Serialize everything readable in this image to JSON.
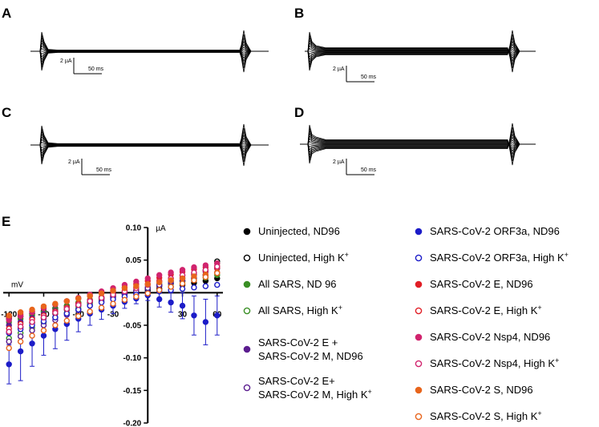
{
  "figure": {
    "panels": [
      {
        "letter": "A",
        "amp_label": "2 µA",
        "time_label": "50 ms",
        "spread": 0.18
      },
      {
        "letter": "B",
        "amp_label": "2 µA",
        "time_label": "50 ms",
        "spread": 0.55
      },
      {
        "letter": "C",
        "amp_label": "2 µA",
        "time_label": "50 ms",
        "spread": 0.22
      },
      {
        "letter": "D",
        "amp_label": "2 µA",
        "time_label": "50 ms",
        "spread": 0.7
      }
    ]
  },
  "chart_data": {
    "panel_label": "E",
    "type": "scatter",
    "xlabel": "mV",
    "ylabel": "µA",
    "xlim": [
      -125,
      65
    ],
    "ylim": [
      -0.2,
      0.1
    ],
    "x_ticks": [
      -120,
      -90,
      -60,
      -30,
      0,
      30,
      60
    ],
    "x_tick_labels": [
      "-120",
      "-90",
      "-60",
      "-30",
      "",
      "30",
      "60"
    ],
    "y_ticks": [
      0.1,
      0.05,
      0,
      -0.05,
      -0.1,
      -0.15,
      -0.2
    ],
    "y_tick_labels": [
      "0.10",
      "0.05",
      "",
      "-0.05",
      "-0.10",
      "-0.15",
      "-0.20"
    ],
    "x": [
      -120,
      -110,
      -100,
      -90,
      -80,
      -70,
      -60,
      -50,
      -40,
      -30,
      -20,
      -10,
      0,
      10,
      20,
      30,
      40,
      50,
      60
    ],
    "series": [
      {
        "name": "Uninjected, ND96",
        "sup": "",
        "marker": "filled",
        "color": "#000000",
        "values": [
          -0.04,
          -0.036,
          -0.032,
          -0.028,
          -0.024,
          -0.02,
          -0.016,
          -0.012,
          -0.008,
          -0.005,
          -0.002,
          0.0,
          0.003,
          0.006,
          0.009,
          0.012,
          0.015,
          0.018,
          0.022
        ]
      },
      {
        "name": "Uninjected, High K",
        "sup": "+",
        "marker": "open",
        "color": "#000000",
        "values": [
          -0.06,
          -0.053,
          -0.046,
          -0.039,
          -0.032,
          -0.026,
          -0.02,
          -0.015,
          -0.01,
          -0.006,
          -0.002,
          0.002,
          0.006,
          0.01,
          0.014,
          0.018,
          0.022,
          0.027,
          0.048
        ]
      },
      {
        "name": "All SARS, ND 96",
        "sup": "",
        "marker": "filled",
        "color": "#3a8f25",
        "values": [
          -0.045,
          -0.04,
          -0.035,
          -0.03,
          -0.025,
          -0.02,
          -0.015,
          -0.011,
          -0.007,
          -0.003,
          0.001,
          0.004,
          0.008,
          0.011,
          0.014,
          0.017,
          0.02,
          0.023,
          0.027
        ]
      },
      {
        "name": "All SARS, High K",
        "sup": "+",
        "marker": "open",
        "color": "#3a8f25",
        "values": [
          -0.07,
          -0.062,
          -0.054,
          -0.046,
          -0.038,
          -0.031,
          -0.024,
          -0.018,
          -0.012,
          -0.007,
          -0.002,
          0.003,
          0.008,
          0.013,
          0.018,
          0.023,
          0.028,
          0.034,
          0.045
        ]
      },
      {
        "name": "SARS-CoV-2 E +\nSARS-CoV-2 M, ND96",
        "sup": "",
        "marker": "filled",
        "color": "#5b1d8f",
        "values": [
          -0.05,
          -0.045,
          -0.039,
          -0.033,
          -0.028,
          -0.023,
          -0.018,
          -0.013,
          -0.009,
          -0.005,
          -0.001,
          0.003,
          0.007,
          0.011,
          0.015,
          0.019,
          0.023,
          0.027,
          0.031
        ]
      },
      {
        "name": "SARS-CoV-2 E+\nSARS-CoV-2 M, High K",
        "sup": "+",
        "marker": "open",
        "color": "#5b1d8f",
        "values": [
          -0.075,
          -0.067,
          -0.058,
          -0.05,
          -0.042,
          -0.034,
          -0.027,
          -0.02,
          -0.014,
          -0.008,
          -0.003,
          0.002,
          0.007,
          0.012,
          0.017,
          0.022,
          0.027,
          0.032,
          0.037
        ]
      },
      {
        "name": "SARS-CoV-2 ORF3a, ND96",
        "sup": "",
        "marker": "filled",
        "color": "#1c1cc8",
        "values": [
          -0.11,
          -0.09,
          -0.078,
          -0.066,
          -0.056,
          -0.048,
          -0.04,
          -0.032,
          -0.026,
          -0.02,
          -0.014,
          -0.009,
          -0.004,
          -0.01,
          -0.015,
          -0.02,
          -0.035,
          -0.045,
          -0.035
        ]
      },
      {
        "name": "SARS-CoV-2 ORF3a, High K",
        "sup": "+",
        "marker": "open",
        "color": "#1c1cc8",
        "values": [
          -0.062,
          -0.056,
          -0.05,
          -0.044,
          -0.038,
          -0.032,
          -0.026,
          -0.02,
          -0.015,
          -0.01,
          -0.006,
          -0.003,
          0.0,
          0.002,
          0.004,
          0.006,
          0.008,
          0.01,
          0.012
        ]
      },
      {
        "name": "SARS-CoV-2 E, ND96",
        "sup": "",
        "marker": "filled",
        "color": "#e11f26",
        "values": [
          -0.038,
          -0.033,
          -0.028,
          -0.023,
          -0.018,
          -0.013,
          -0.009,
          -0.005,
          -0.001,
          0.003,
          0.008,
          0.013,
          0.018,
          0.023,
          0.028,
          0.032,
          0.036,
          0.039,
          0.041
        ]
      },
      {
        "name": "SARS-CoV-2 E, High K",
        "sup": "+",
        "marker": "open",
        "color": "#e11f26",
        "values": [
          -0.055,
          -0.048,
          -0.041,
          -0.035,
          -0.029,
          -0.023,
          -0.017,
          -0.012,
          -0.007,
          -0.002,
          0.003,
          0.008,
          0.013,
          0.018,
          0.022,
          0.026,
          0.03,
          0.034,
          0.038
        ]
      },
      {
        "name": "SARS-CoV-2 Nsp4, ND96",
        "sup": "",
        "marker": "filled",
        "color": "#d1246e",
        "values": [
          -0.042,
          -0.036,
          -0.03,
          -0.024,
          -0.018,
          -0.013,
          -0.008,
          -0.003,
          0.002,
          0.007,
          0.012,
          0.017,
          0.022,
          0.027,
          0.031,
          0.035,
          0.039,
          0.042,
          0.045
        ]
      },
      {
        "name": "SARS-CoV-2 Nsp4, High K",
        "sup": "+",
        "marker": "open",
        "color": "#d1246e",
        "values": [
          -0.06,
          -0.052,
          -0.045,
          -0.038,
          -0.031,
          -0.025,
          -0.019,
          -0.013,
          -0.008,
          -0.003,
          0.002,
          0.007,
          0.012,
          0.017,
          0.022,
          0.027,
          0.031,
          0.035,
          0.04
        ]
      },
      {
        "name": "SARS-CoV-2 S, ND96",
        "sup": "",
        "marker": "filled",
        "color": "#e8651c",
        "values": [
          -0.035,
          -0.03,
          -0.026,
          -0.021,
          -0.017,
          -0.013,
          -0.009,
          -0.005,
          -0.001,
          0.003,
          0.007,
          0.01,
          0.013,
          0.016,
          0.019,
          0.022,
          0.025,
          0.028,
          0.031
        ]
      },
      {
        "name": "SARS-CoV-2 S, High K",
        "sup": "+",
        "marker": "open",
        "color": "#e8651c",
        "values": [
          -0.085,
          -0.075,
          -0.066,
          -0.058,
          -0.05,
          -0.043,
          -0.036,
          -0.029,
          -0.023,
          -0.017,
          -0.011,
          -0.006,
          -0.001,
          0.004,
          0.009,
          0.014,
          0.019,
          0.024,
          0.03
        ]
      }
    ],
    "error_bars": {
      "series": "SARS-CoV-2 ORF3a, ND96",
      "values": [
        0.03,
        0.045,
        0.035,
        0.03,
        0.03,
        0.025,
        0.02,
        0.018,
        0.015,
        0.012,
        0.01,
        0.008,
        0.008,
        0.012,
        0.015,
        0.02,
        0.03,
        0.035,
        0.03
      ]
    },
    "legend": {
      "columns": 2,
      "placement": "right"
    }
  }
}
